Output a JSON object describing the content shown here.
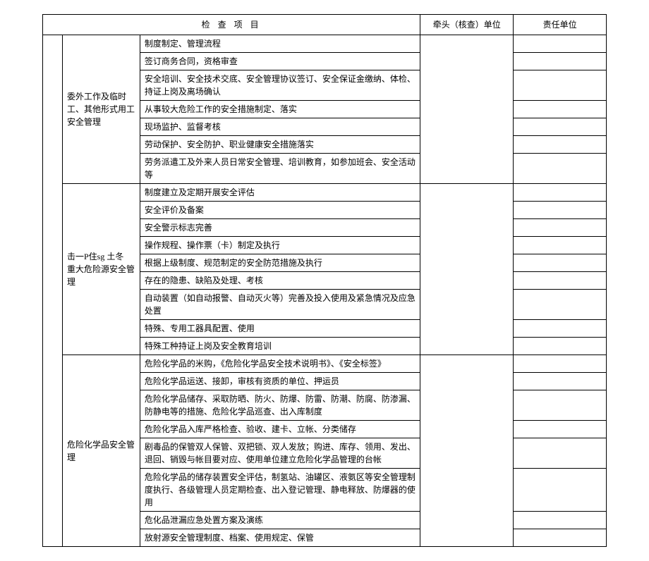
{
  "header": {
    "inspect_item": "检 查 项 目",
    "lead_unit": "牵头（核查）单位",
    "responsible_unit": "责任单位"
  },
  "sections": [
    {
      "category": "委外工作及临时工、其他形式用工安全管理",
      "items": [
        "制度制定、管理流程",
        "签订商务合同，资格审查",
        "安全培训、安全技术交底、安全管理协议签订、安全保证金缴纳、体检、持证上岗及离场确认",
        "从事较大危险工作的安全措施制定、落实",
        "现场监护、监督考核",
        "劳动保护、安全防护、职业健康安全措施落实",
        "劳务派遣工及外来人员日常安全管理、培训教育，如参加班会、安全活动等"
      ]
    },
    {
      "category_line1": "击一P住sg 土冬",
      "category_line2": "重大危险源安全管理",
      "items": [
        "制度建立及定期开展安全评估",
        "安全评价及备案",
        "安全警示标志完善",
        "操作规程、操作票（卡）制定及执行",
        "根据上级制度、规范制定的安全防范措施及执行",
        "存在的隐患、缺陷及处理、考核",
        "自动装置（如自动报警、自动灭火等）完善及投入使用及紧急情况及应急处置",
        "特殊、专用工器具配置、使用",
        "特殊工种持证上岗及安全教育培训"
      ]
    },
    {
      "category": "危险化学品安全管理",
      "items": [
        "危险化学品的米购，《危险化学品安全技术说明书》、《安全标签》",
        "危险化学品运送、接卸，审核有资质的单位、押运员",
        "危险化学品储存、采取防晒、防火、防爆、防雷、防潮、防腐、防渗漏、防静电等的措施、危险化学品巡查、出入库制度",
        "危险化学品入库严格检查、验收、建卡、立帐、分类储存",
        "剧毒品的保管双人保管、双把锁、双人发放；购进、库存、领用、发出、退回、销毁与帐目要对应、使用单位建立危险化学品管理的台帐",
        "危险化学品的储存装置安全评估，制氢站、油罐区、液氨区等安全管理制度执行、各级管理人员定期检查、出入登记管理、静电释放、防爆器的使用",
        "危化品泄漏应急处置方案及演练",
        "放射源安全管理制度、档案、使用规定、保管"
      ]
    }
  ]
}
